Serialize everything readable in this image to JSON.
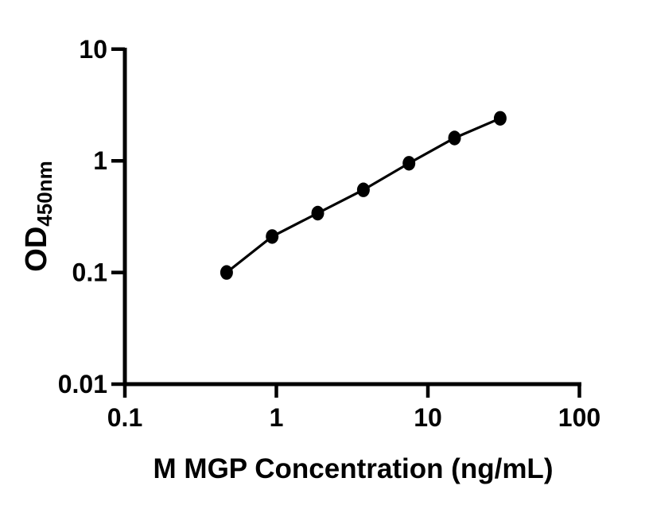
{
  "figure": {
    "background": "#ffffff"
  },
  "chart_data": {
    "type": "scatter",
    "subtype": "scatter-with-connecting-line",
    "title": "",
    "xlabel": "M MGP Concentration (ng/mL)",
    "ylabel_main": "OD",
    "ylabel_sub": "450nm",
    "x_scale": "log10",
    "y_scale": "log10",
    "xlim": [
      0.1,
      100
    ],
    "ylim": [
      0.01,
      10
    ],
    "grid": false,
    "legend": false,
    "x_ticks": [
      {
        "v": 0.1,
        "label": "0.1"
      },
      {
        "v": 1,
        "label": "1"
      },
      {
        "v": 10,
        "label": "10"
      },
      {
        "v": 100,
        "label": "100"
      }
    ],
    "y_ticks": [
      {
        "v": 10,
        "label": "10"
      },
      {
        "v": 1,
        "label": "1"
      },
      {
        "v": 0.1,
        "label": "0.1"
      },
      {
        "v": 0.01,
        "label": "0.01"
      }
    ],
    "series": [
      {
        "x": [
          0.469,
          0.938,
          1.875,
          3.75,
          7.5,
          15,
          30
        ],
        "y": [
          0.1,
          0.21,
          0.34,
          0.55,
          0.95,
          1.6,
          2.4
        ]
      }
    ],
    "colors": {
      "line": "#000000",
      "marker": "#000000",
      "axis": "#000000",
      "text": "#000000",
      "background": "#ffffff"
    }
  }
}
